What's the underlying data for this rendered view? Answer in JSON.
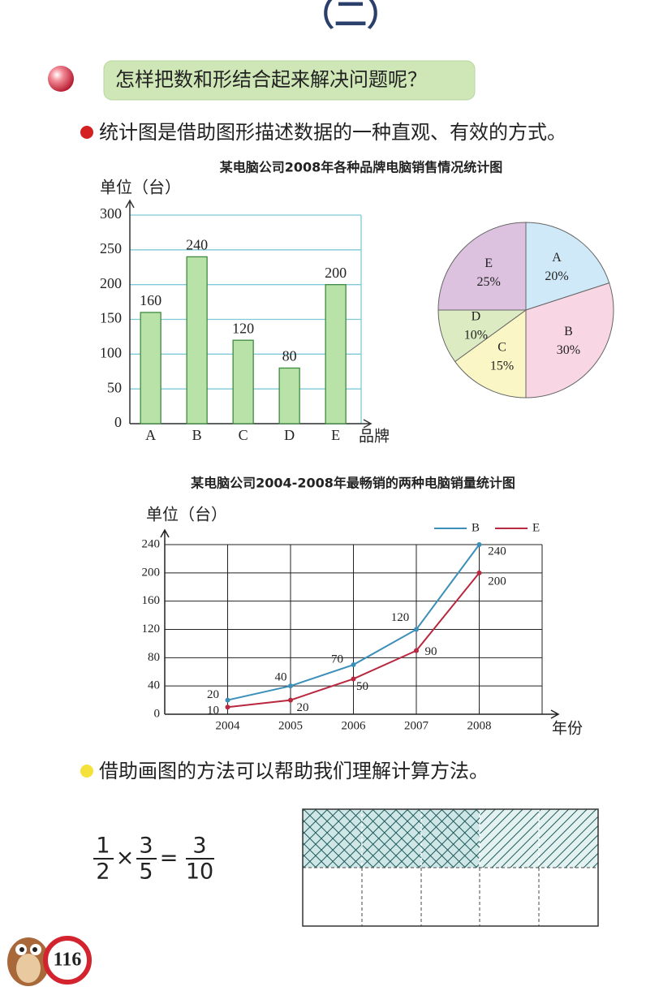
{
  "header": {
    "title": "（二）"
  },
  "question": "怎样把数和形结合起来解决问题呢？",
  "points": [
    "统计图是借助图形描述数据的一种直观、有效的方式。",
    "借助画图的方法可以帮助我们理解计算方法。"
  ],
  "chart_data": [
    {
      "type": "bar",
      "title": "某电脑公司2008年各种品牌电脑销售情况统计图",
      "y_label": "单位（台）",
      "x_label": "品牌",
      "categories": [
        "A",
        "B",
        "C",
        "D",
        "E"
      ],
      "values": [
        160,
        240,
        120,
        80,
        200
      ],
      "color": "#b9e2a9",
      "ylim": [
        0,
        300
      ],
      "yticks": [
        0,
        50,
        100,
        150,
        200,
        250,
        300
      ],
      "grid": true
    },
    {
      "type": "pie",
      "categories": [
        "A",
        "B",
        "C",
        "D",
        "E"
      ],
      "values": [
        20,
        30,
        15,
        10,
        25
      ],
      "value_labels": [
        "20%",
        "30%",
        "15%",
        "10%",
        "25%"
      ],
      "colors": [
        "#cfe9f8",
        "#f8d6e3",
        "#fbf6c6",
        "#dcebc1",
        "#dcc2df"
      ]
    },
    {
      "type": "line",
      "title": "某电脑公司2004-2008年最畅销的两种电脑销量统计图",
      "y_label": "单位（台）",
      "x_label": "年份",
      "x": [
        2004,
        2005,
        2006,
        2007,
        2008
      ],
      "xlim": [
        2003,
        2009
      ],
      "xticks": [
        2004,
        2005,
        2006,
        2007,
        2008
      ],
      "ylim": [
        0,
        240
      ],
      "yticks": [
        0,
        40,
        80,
        120,
        160,
        200,
        240
      ],
      "grid": true,
      "series": [
        {
          "name": "B",
          "color": "#3b8fb8",
          "values": [
            20,
            40,
            70,
            120,
            240
          ]
        },
        {
          "name": "E",
          "color": "#b8283f",
          "values": [
            10,
            20,
            50,
            90,
            200
          ]
        }
      ]
    }
  ],
  "fraction": {
    "a_num": 1,
    "a_den": 2,
    "times": "×",
    "b_num": 3,
    "b_den": 5,
    "equals": "=",
    "c_num": 3,
    "c_den": 10
  },
  "page_number": 116
}
